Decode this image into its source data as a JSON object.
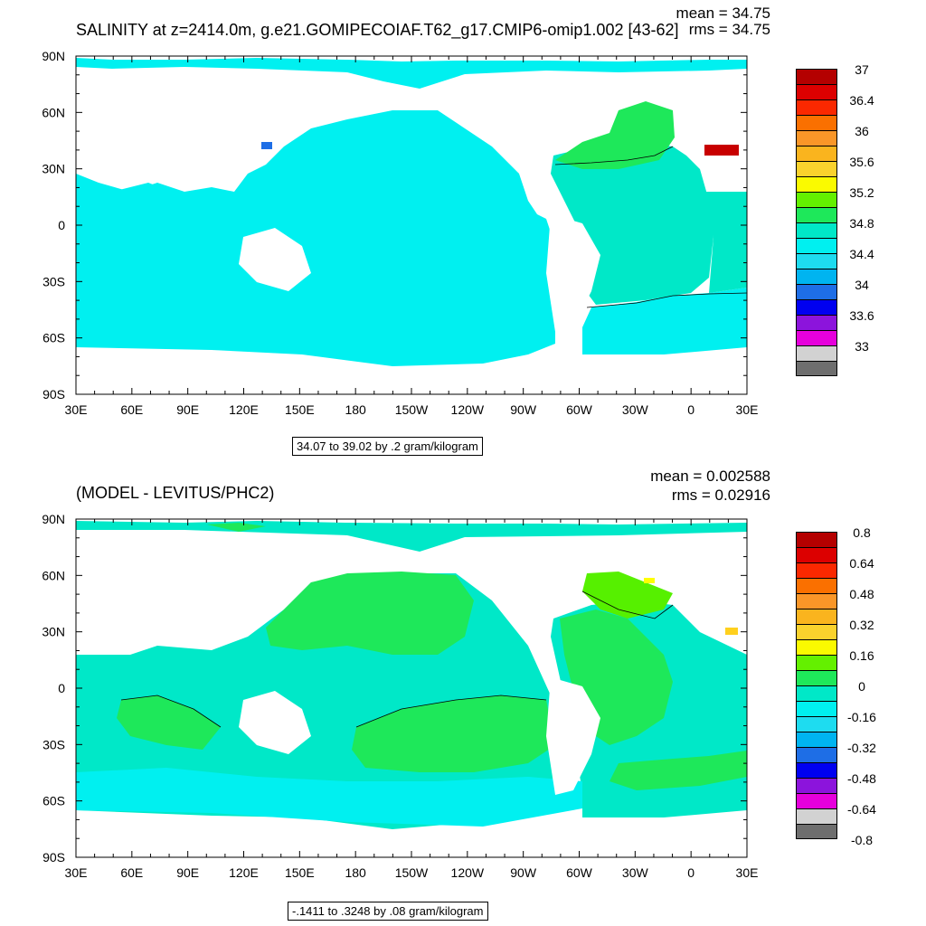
{
  "colors": {
    "land": "#ffffff",
    "cyan": "#00f0f0",
    "teal": "#00e8c8",
    "green": "#1ee85a",
    "lime": "#56f000",
    "yellow": "#ffff00",
    "gold": "#ffd01e",
    "darkred": "#c80000",
    "blue": "#1e6ee6"
  },
  "panel_top": {
    "title": "SALINITY at z=2414.0m, g.e21.GOMIPECOIAF.T62_g17.CMIP6-omip1.002 [43-62]",
    "mean_text": "mean = 34.75",
    "rms_text": "rms = 34.75",
    "info_text": "34.07 to 39.02 by .2 gram/kilogram",
    "colorbar": {
      "colors": [
        "#b40000",
        "#dc0000",
        "#fa2800",
        "#fa7000",
        "#fa9628",
        "#fab41e",
        "#fad22d",
        "#fafa00",
        "#64f000",
        "#1ee85a",
        "#00e8c8",
        "#00f0f0",
        "#1edcf0",
        "#00b4f0",
        "#1e6ee6",
        "#0000f0",
        "#8c14dc",
        "#e600dc",
        "#d2d2d2",
        "#6e6e6e"
      ],
      "labels": [
        "37",
        "36.4",
        "36",
        "35.6",
        "35.2",
        "34.8",
        "34.4",
        "34",
        "33.6",
        "33"
      ]
    }
  },
  "panel_bottom": {
    "title": "(MODEL - LEVITUS/PHC2)",
    "mean_text": "mean = 0.002588",
    "rms_text": "rms = 0.02916",
    "info_text": "-.1411 to .3248 by .08 gram/kilogram",
    "colorbar": {
      "colors": [
        "#b40000",
        "#dc0000",
        "#fa2800",
        "#fa7000",
        "#fa9628",
        "#fab41e",
        "#fad22d",
        "#fafa00",
        "#64f000",
        "#1ee85a",
        "#00e8c8",
        "#00f0f0",
        "#1edcf0",
        "#00b4f0",
        "#1e6ee6",
        "#0000f0",
        "#8c14dc",
        "#e600dc",
        "#d2d2d2",
        "#6e6e6e"
      ],
      "labels": [
        "0.8",
        "0.64",
        "0.48",
        "0.32",
        "0.16",
        "0",
        "-0.16",
        "-0.32",
        "-0.48",
        "-0.64",
        "-0.8"
      ]
    }
  },
  "chart_data": [
    {
      "type": "heatmap",
      "title": "SALINITY at z=2414.0m, g.e21.GOMIPECOIAF.T62_g17.CMIP6-omip1.002 [43-62]",
      "x_tick_labels": [
        "30E",
        "60E",
        "90E",
        "120E",
        "150E",
        "180",
        "150W",
        "120W",
        "90W",
        "60W",
        "30W",
        "0",
        "30E"
      ],
      "y_tick_labels": [
        "90N",
        "60N",
        "30N",
        "0",
        "30S",
        "60S",
        "90S"
      ],
      "xlim": [
        30,
        390
      ],
      "ylim": [
        -90,
        90
      ],
      "mean": 34.75,
      "rms": 34.75,
      "colorbar_labels": [
        37,
        36.4,
        36,
        35.6,
        35.2,
        34.8,
        34.4,
        34,
        33.6,
        33
      ],
      "field_range": [
        34.07,
        39.02
      ],
      "contour_interval": 0.2,
      "units": "gram/kilogram"
    },
    {
      "type": "heatmap",
      "title": "(MODEL - LEVITUS/PHC2)",
      "x_tick_labels": [
        "30E",
        "60E",
        "90E",
        "120E",
        "150E",
        "180",
        "150W",
        "120W",
        "90W",
        "60W",
        "30W",
        "0",
        "30E"
      ],
      "y_tick_labels": [
        "90N",
        "60N",
        "30N",
        "0",
        "30S",
        "60S",
        "90S"
      ],
      "xlim": [
        30,
        390
      ],
      "ylim": [
        -90,
        90
      ],
      "mean": 0.002588,
      "rms": 0.02916,
      "colorbar_labels": [
        0.8,
        0.64,
        0.48,
        0.32,
        0.16,
        0,
        -0.16,
        -0.32,
        -0.48,
        -0.64,
        -0.8
      ],
      "field_range": [
        -0.1411,
        0.3248
      ],
      "contour_interval": 0.08,
      "units": "gram/kilogram"
    }
  ]
}
